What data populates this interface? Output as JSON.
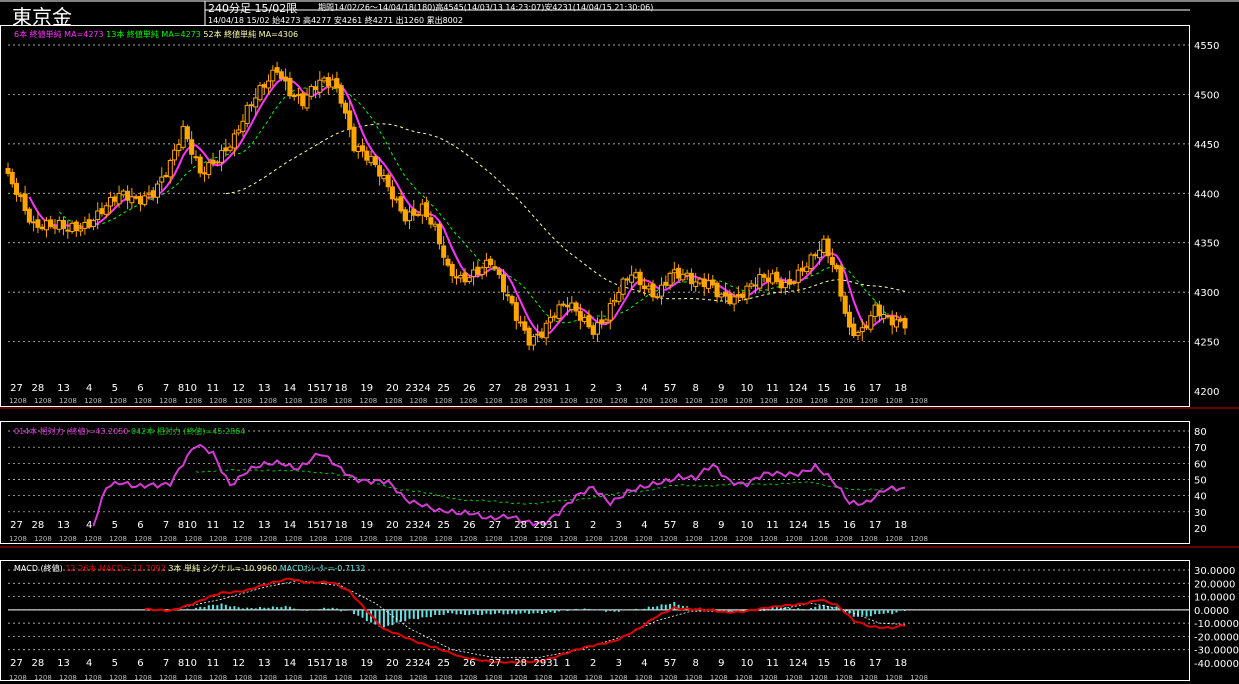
{
  "header": {
    "title": "東京金",
    "period_label": "240分足 15/02限",
    "range_info": "期間14/02/26～14/04/18(180)高4545(14/03/13 14:23:07)安4231(14/04/15 21:30:06)",
    "ohlc_line": "14/04/18 15/02 始4273 高4277 安4261 終4271 出1260 累出8002"
  },
  "colors": {
    "background": "#000000",
    "grid": "#dcdcdc",
    "candle": "#ffa500",
    "ma6": "#ff33ff",
    "ma13": "#00ff00",
    "ma52": "#ffffaa",
    "rsi14": "#d43bd4",
    "rsi42": "#00cc00",
    "macd": "#e00000",
    "signal": "#ffffff",
    "osc": "#66e0e0",
    "border": "#d00000"
  },
  "chart_data": [
    {
      "type": "candlestick",
      "legend": [
        {
          "text": "6本 終値単純 MA=4273",
          "color": "#ff33ff"
        },
        {
          "text": "13本 終値単純 MA=4273",
          "color": "#00ff00"
        },
        {
          "text": "52本 終値単純 MA=4306",
          "color": "#ffffaa"
        }
      ],
      "y_ticks": [
        "4550",
        "4500",
        "4450",
        "4400",
        "4350",
        "4300",
        "4250",
        "4200"
      ],
      "ylim": [
        4200,
        4560
      ],
      "x_tick_labels": [
        "27",
        "28",
        "13",
        "4",
        "5",
        "6",
        "7",
        "10",
        "11",
        "12",
        "13",
        "14",
        "17",
        "18",
        "19",
        "20",
        "24",
        "25",
        "26",
        "27",
        "28",
        "31",
        "1",
        "2",
        "3",
        "4",
        "7",
        "8",
        "9",
        "10",
        "11",
        "14",
        "15",
        "16",
        "17",
        "18"
      ],
      "x_tick_positions": [
        2,
        7,
        13,
        19,
        25,
        31,
        37,
        42,
        48,
        54,
        60,
        66,
        73,
        78,
        84,
        90,
        96,
        102,
        108,
        114,
        120,
        126,
        131,
        137,
        143,
        149,
        155,
        161,
        167,
        173,
        179,
        185,
        191,
        197,
        203,
        209
      ],
      "x_tick_display": [
        "27",
        "28",
        "13",
        "4",
        "5",
        "6",
        "7",
        "810",
        "11",
        "12",
        "13",
        "14",
        "1517",
        "18",
        "19",
        "20",
        "2324",
        "25",
        "26",
        "27",
        "28",
        "2931",
        "1",
        "2",
        "3",
        "4",
        "57",
        "8",
        "9",
        "10",
        "11",
        "124",
        "15",
        "16",
        "17",
        "18"
      ],
      "session_label": "1208",
      "key_points": [
        {
          "x": 0,
          "v": 4415
        },
        {
          "x": 2,
          "v": 4405
        },
        {
          "x": 6,
          "v": 4370
        },
        {
          "x": 10,
          "v": 4365
        },
        {
          "x": 14,
          "v": 4362
        },
        {
          "x": 18,
          "v": 4370
        },
        {
          "x": 22,
          "v": 4385
        },
        {
          "x": 26,
          "v": 4395
        },
        {
          "x": 30,
          "v": 4392
        },
        {
          "x": 34,
          "v": 4405
        },
        {
          "x": 38,
          "v": 4430
        },
        {
          "x": 41,
          "v": 4460
        },
        {
          "x": 45,
          "v": 4420
        },
        {
          "x": 48,
          "v": 4435
        },
        {
          "x": 53,
          "v": 4455
        },
        {
          "x": 56,
          "v": 4480
        },
        {
          "x": 60,
          "v": 4510
        },
        {
          "x": 63,
          "v": 4530
        },
        {
          "x": 66,
          "v": 4505
        },
        {
          "x": 69,
          "v": 4490
        },
        {
          "x": 73,
          "v": 4510
        },
        {
          "x": 76,
          "v": 4515
        },
        {
          "x": 78,
          "v": 4500
        },
        {
          "x": 81,
          "v": 4450
        },
        {
          "x": 85,
          "v": 4430
        },
        {
          "x": 89,
          "v": 4405
        },
        {
          "x": 93,
          "v": 4380
        },
        {
          "x": 97,
          "v": 4385
        },
        {
          "x": 100,
          "v": 4360
        },
        {
          "x": 103,
          "v": 4320
        },
        {
          "x": 106,
          "v": 4315
        },
        {
          "x": 110,
          "v": 4325
        },
        {
          "x": 113,
          "v": 4330
        },
        {
          "x": 116,
          "v": 4300
        },
        {
          "x": 119,
          "v": 4275
        },
        {
          "x": 122,
          "v": 4255
        },
        {
          "x": 125,
          "v": 4262
        },
        {
          "x": 128,
          "v": 4278
        },
        {
          "x": 131,
          "v": 4285
        },
        {
          "x": 134,
          "v": 4275
        },
        {
          "x": 137,
          "v": 4265
        },
        {
          "x": 140,
          "v": 4278
        },
        {
          "x": 143,
          "v": 4300
        },
        {
          "x": 146,
          "v": 4315
        },
        {
          "x": 149,
          "v": 4305
        },
        {
          "x": 152,
          "v": 4300
        },
        {
          "x": 155,
          "v": 4322
        },
        {
          "x": 158,
          "v": 4315
        },
        {
          "x": 161,
          "v": 4305
        },
        {
          "x": 164,
          "v": 4310
        },
        {
          "x": 167,
          "v": 4300
        },
        {
          "x": 170,
          "v": 4295
        },
        {
          "x": 173,
          "v": 4300
        },
        {
          "x": 176,
          "v": 4310
        },
        {
          "x": 179,
          "v": 4315
        },
        {
          "x": 182,
          "v": 4310
        },
        {
          "x": 185,
          "v": 4320
        },
        {
          "x": 188,
          "v": 4330
        },
        {
          "x": 191,
          "v": 4345
        },
        {
          "x": 194,
          "v": 4320
        },
        {
          "x": 197,
          "v": 4265
        },
        {
          "x": 200,
          "v": 4262
        },
        {
          "x": 203,
          "v": 4280
        },
        {
          "x": 206,
          "v": 4268
        },
        {
          "x": 210,
          "v": 4271
        }
      ],
      "n_bars": 211
    },
    {
      "type": "line",
      "legend": [
        {
          "text": "014本 相対力 (終値)=43.2050",
          "color": "#d43bd4"
        },
        {
          "text": "042本 相対力 (終値)=45.2864",
          "color": "#00cc00"
        }
      ],
      "y_ticks": [
        "80",
        "70",
        "60",
        "50",
        "40",
        "30",
        "20"
      ],
      "ylim": [
        20,
        80
      ],
      "rsi14_key_points": [
        {
          "x": 20,
          "v": 23
        },
        {
          "x": 23,
          "v": 47
        },
        {
          "x": 26,
          "v": 48
        },
        {
          "x": 30,
          "v": 44
        },
        {
          "x": 34,
          "v": 47
        },
        {
          "x": 38,
          "v": 49
        },
        {
          "x": 41,
          "v": 60
        },
        {
          "x": 44,
          "v": 70
        },
        {
          "x": 48,
          "v": 66
        },
        {
          "x": 52,
          "v": 48
        },
        {
          "x": 56,
          "v": 55
        },
        {
          "x": 60,
          "v": 58
        },
        {
          "x": 64,
          "v": 61
        },
        {
          "x": 68,
          "v": 58
        },
        {
          "x": 73,
          "v": 65
        },
        {
          "x": 77,
          "v": 58
        },
        {
          "x": 81,
          "v": 52
        },
        {
          "x": 85,
          "v": 49
        },
        {
          "x": 89,
          "v": 47
        },
        {
          "x": 93,
          "v": 38
        },
        {
          "x": 97,
          "v": 36
        },
        {
          "x": 101,
          "v": 30
        },
        {
          "x": 105,
          "v": 28
        },
        {
          "x": 109,
          "v": 30
        },
        {
          "x": 113,
          "v": 27
        },
        {
          "x": 117,
          "v": 26
        },
        {
          "x": 121,
          "v": 23
        },
        {
          "x": 125,
          "v": 24
        },
        {
          "x": 129,
          "v": 30
        },
        {
          "x": 133,
          "v": 38
        },
        {
          "x": 137,
          "v": 45
        },
        {
          "x": 141,
          "v": 37
        },
        {
          "x": 145,
          "v": 42
        },
        {
          "x": 149,
          "v": 44
        },
        {
          "x": 153,
          "v": 49
        },
        {
          "x": 157,
          "v": 53
        },
        {
          "x": 161,
          "v": 50
        },
        {
          "x": 165,
          "v": 58
        },
        {
          "x": 169,
          "v": 50
        },
        {
          "x": 173,
          "v": 48
        },
        {
          "x": 177,
          "v": 52
        },
        {
          "x": 181,
          "v": 53
        },
        {
          "x": 185,
          "v": 55
        },
        {
          "x": 189,
          "v": 58
        },
        {
          "x": 193,
          "v": 48
        },
        {
          "x": 197,
          "v": 36
        },
        {
          "x": 201,
          "v": 37
        },
        {
          "x": 205,
          "v": 43
        },
        {
          "x": 210,
          "v": 43
        }
      ],
      "rsi42_key_points": [
        {
          "x": 44,
          "v": 55
        },
        {
          "x": 60,
          "v": 56
        },
        {
          "x": 76,
          "v": 54
        },
        {
          "x": 92,
          "v": 44
        },
        {
          "x": 108,
          "v": 37
        },
        {
          "x": 124,
          "v": 35
        },
        {
          "x": 140,
          "v": 40
        },
        {
          "x": 156,
          "v": 46
        },
        {
          "x": 172,
          "v": 47
        },
        {
          "x": 188,
          "v": 48
        },
        {
          "x": 200,
          "v": 43
        },
        {
          "x": 210,
          "v": 45
        }
      ]
    },
    {
      "type": "line",
      "legend": [
        {
          "text": "MACD (終値)",
          "color": "#ffffff"
        },
        {
          "text": "12-26本 MACD=-11.7092",
          "color": "#e00000"
        },
        {
          "text": "3本 単純 シグナル=-10.9960",
          "color": "#ffffaa"
        },
        {
          "text": "MACDｵｼﾚｰﾀｰ=-0.7132",
          "color": "#66e0e0"
        }
      ],
      "y_ticks": [
        "30.0000",
        "20.0000",
        "10.0000",
        "0.0000",
        "-10.0000",
        "-20.0000",
        "-30.0000",
        "-40.0000"
      ],
      "ylim": [
        -40,
        30
      ],
      "macd_key_points": [
        {
          "x": 38,
          "v": 0
        },
        {
          "x": 44,
          "v": 5
        },
        {
          "x": 50,
          "v": 13
        },
        {
          "x": 56,
          "v": 15
        },
        {
          "x": 62,
          "v": 20
        },
        {
          "x": 66,
          "v": 24
        },
        {
          "x": 70,
          "v": 21
        },
        {
          "x": 76,
          "v": 20
        },
        {
          "x": 80,
          "v": 14
        },
        {
          "x": 84,
          "v": 0
        },
        {
          "x": 88,
          "v": -15
        },
        {
          "x": 94,
          "v": -22
        },
        {
          "x": 100,
          "v": -28
        },
        {
          "x": 106,
          "v": -36
        },
        {
          "x": 112,
          "v": -38
        },
        {
          "x": 118,
          "v": -40
        },
        {
          "x": 124,
          "v": -39
        },
        {
          "x": 130,
          "v": -33
        },
        {
          "x": 136,
          "v": -28
        },
        {
          "x": 142,
          "v": -23
        },
        {
          "x": 148,
          "v": -14
        },
        {
          "x": 152,
          "v": -5
        },
        {
          "x": 156,
          "v": 2
        },
        {
          "x": 162,
          "v": 0
        },
        {
          "x": 168,
          "v": -2
        },
        {
          "x": 174,
          "v": 0
        },
        {
          "x": 180,
          "v": 2
        },
        {
          "x": 186,
          "v": 5
        },
        {
          "x": 190,
          "v": 8
        },
        {
          "x": 194,
          "v": 3
        },
        {
          "x": 198,
          "v": -8
        },
        {
          "x": 202,
          "v": -12
        },
        {
          "x": 207,
          "v": -14
        },
        {
          "x": 210,
          "v": -12
        }
      ],
      "signal_key_points": [
        {
          "x": 38,
          "v": 0
        },
        {
          "x": 50,
          "v": 8
        },
        {
          "x": 60,
          "v": 17
        },
        {
          "x": 68,
          "v": 22
        },
        {
          "x": 78,
          "v": 18
        },
        {
          "x": 86,
          "v": 5
        },
        {
          "x": 94,
          "v": -14
        },
        {
          "x": 104,
          "v": -30
        },
        {
          "x": 114,
          "v": -36
        },
        {
          "x": 124,
          "v": -36
        },
        {
          "x": 134,
          "v": -30
        },
        {
          "x": 144,
          "v": -20
        },
        {
          "x": 152,
          "v": -8
        },
        {
          "x": 160,
          "v": -1
        },
        {
          "x": 170,
          "v": -1
        },
        {
          "x": 180,
          "v": 0
        },
        {
          "x": 188,
          "v": 5
        },
        {
          "x": 196,
          "v": 0
        },
        {
          "x": 204,
          "v": -10
        },
        {
          "x": 210,
          "v": -11
        }
      ]
    }
  ]
}
